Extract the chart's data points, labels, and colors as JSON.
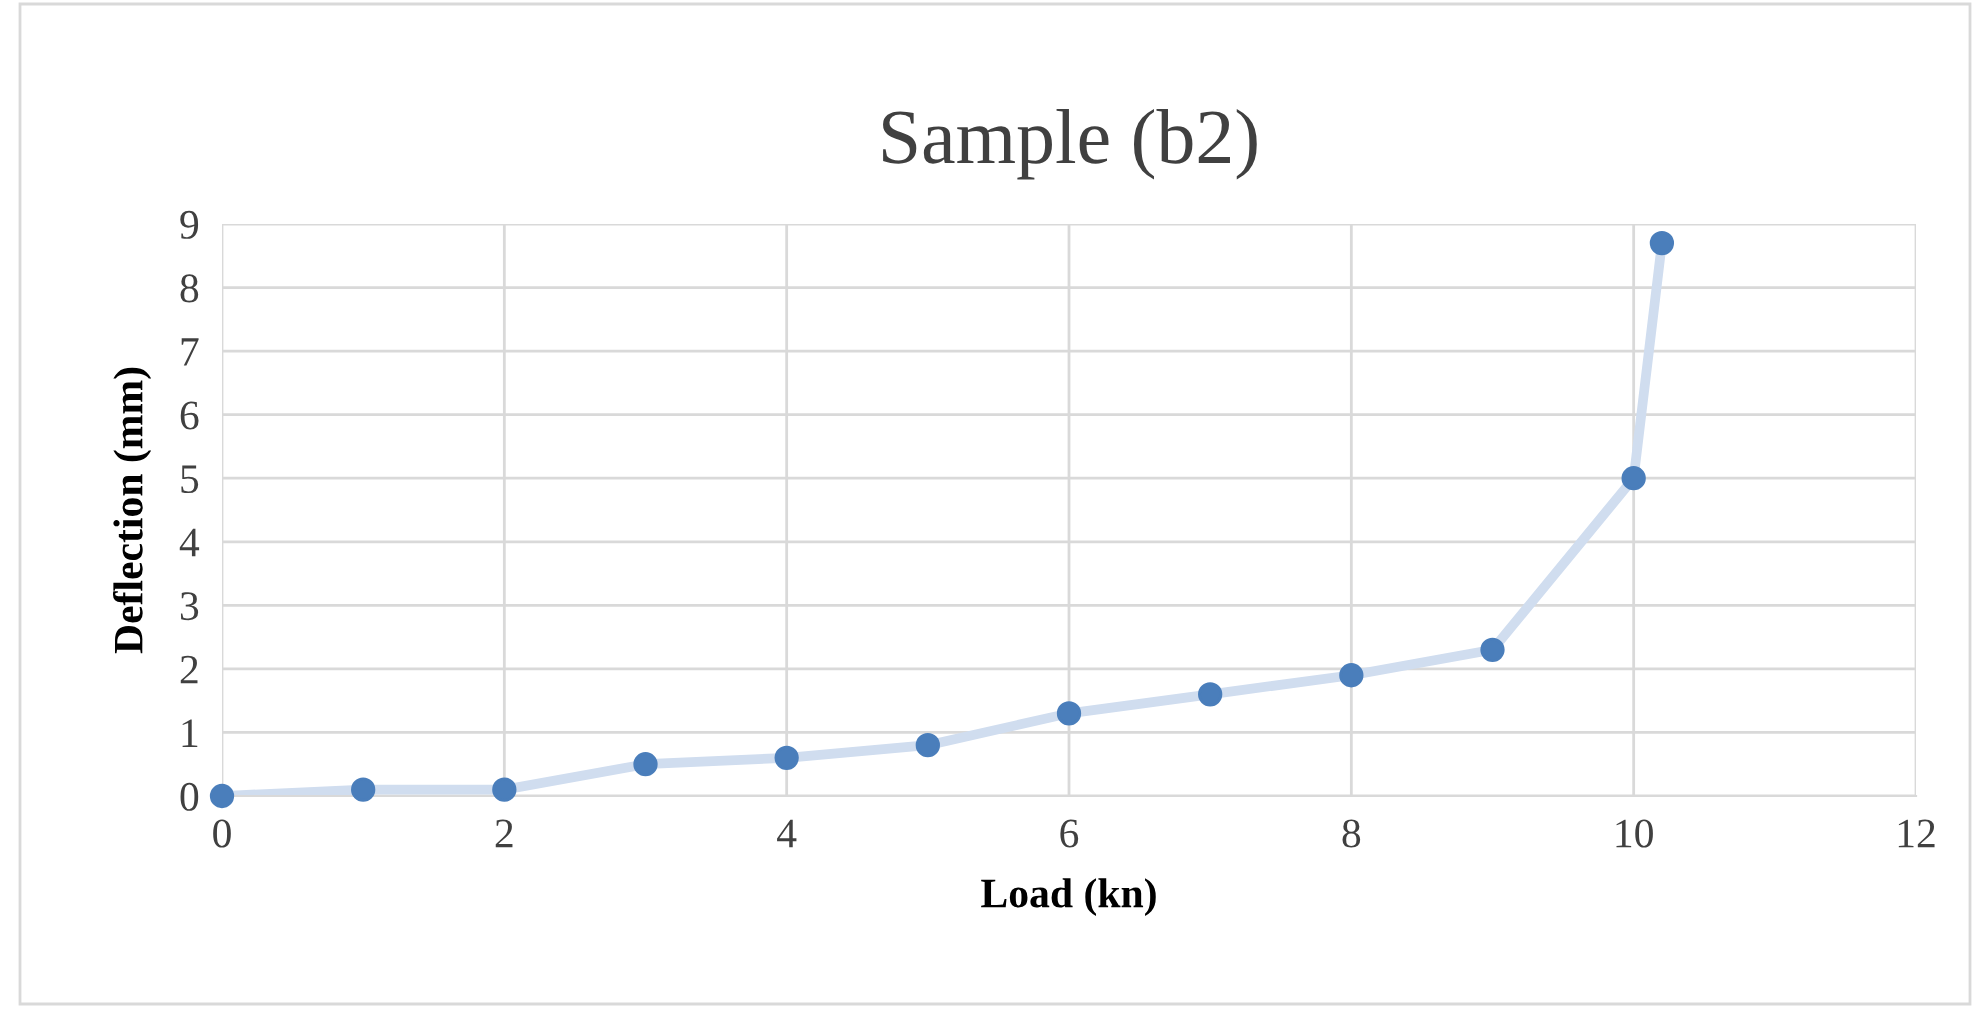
{
  "chart_data": {
    "type": "line",
    "title": "Sample (b2)",
    "xlabel": "Load (kn)",
    "ylabel": "Deflection (mm)",
    "x": [
      0,
      1,
      2,
      3,
      4,
      5,
      6,
      7,
      8,
      9,
      10,
      10.2
    ],
    "series": [
      {
        "color": "#d0ddef",
        "colors": [
          "#4a7ebb",
          "#4a7ebb",
          "#4a7ebb",
          "#4a7ebb",
          "#4a7ebb",
          "#4a7ebb",
          "#4a7ebb",
          "#4a7ebb",
          "#4a7ebb",
          "#4a7ebb",
          "#4a7ebb",
          "#4a7ebb"
        ],
        "values": [
          0,
          0.1,
          0.1,
          0.5,
          0.6,
          0.8,
          1.3,
          1.6,
          1.9,
          2.3,
          5,
          8.7
        ]
      }
    ],
    "xlim": [
      0,
      12
    ],
    "xticks": [
      0,
      2,
      4,
      6,
      8,
      10,
      12
    ],
    "ylim": [
      0,
      9
    ],
    "yticks": [
      0,
      1,
      2,
      3,
      4,
      5,
      6,
      7,
      8,
      9
    ],
    "grid": true,
    "marker": "circle",
    "line_style": "solid"
  }
}
